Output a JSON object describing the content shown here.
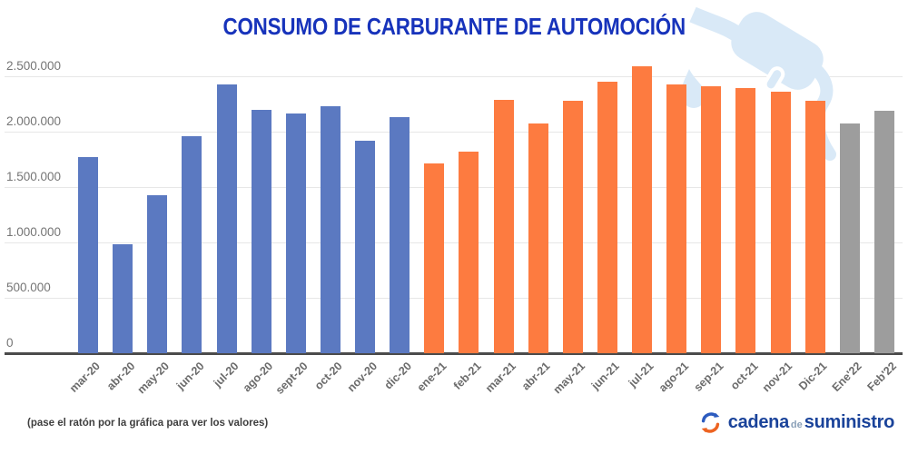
{
  "title": "CONSUMO DE CARBURANTE DE AUTOMOCIÓN",
  "footer": {
    "hint": "(pase el ratón por la gráfica para ver los valores)",
    "logo": {
      "word1": "cadena",
      "word2": "de",
      "word3": "suministro"
    }
  },
  "colors": {
    "title": "#1733bb",
    "gridline": "#e7e7e7",
    "axis_line": "#4b4b4b",
    "axis_text": "#757575",
    "xlabel_text": "#6b6b6b",
    "watermark": "#d9e9f7",
    "logo_blue": "#1a439a",
    "logo_orange": "#ed6321",
    "logo_de": "#8aa0b8"
  },
  "chart_data": {
    "type": "bar",
    "title": "CONSUMO DE CARBURANTE DE AUTOMOCIÓN",
    "categories": [
      "mar-20",
      "abr-20",
      "may-20",
      "jun-20",
      "jul-20",
      "ago-20",
      "sept-20",
      "oct-20",
      "nov-20",
      "dic-20",
      "ene-21",
      "feb-21",
      "mar-21",
      "abr-21",
      "may-21",
      "jun-21",
      "jul-21",
      "ago-21",
      "sep-21",
      "oct-21",
      "nov-21",
      "Dic-21",
      "Ene'22",
      "Feb'22"
    ],
    "values": [
      1770000,
      980000,
      1430000,
      1960000,
      2430000,
      2200000,
      2160000,
      2230000,
      1920000,
      2130000,
      1710000,
      1820000,
      2290000,
      2070000,
      2280000,
      2450000,
      2590000,
      2430000,
      2410000,
      2390000,
      2360000,
      2280000,
      2070000,
      2190000
    ],
    "groups": [
      "2020",
      "2020",
      "2020",
      "2020",
      "2020",
      "2020",
      "2020",
      "2020",
      "2020",
      "2020",
      "2021",
      "2021",
      "2021",
      "2021",
      "2021",
      "2021",
      "2021",
      "2021",
      "2021",
      "2021",
      "2021",
      "2021",
      "2022",
      "2022"
    ],
    "group_colors": {
      "2020": "#5b79c1",
      "2021": "#fd7b40",
      "2022": "#9d9d9d"
    },
    "xlabel": "",
    "ylabel": "",
    "ylim": [
      0,
      2500000
    ],
    "yticks": [
      0,
      500000,
      1000000,
      1500000,
      2000000,
      2500000
    ],
    "ytick_labels": [
      "0",
      "500.000",
      "1.000.000",
      "1.500.000",
      "2.000.000",
      "2.500.000"
    ],
    "grid": true,
    "legend": false
  }
}
